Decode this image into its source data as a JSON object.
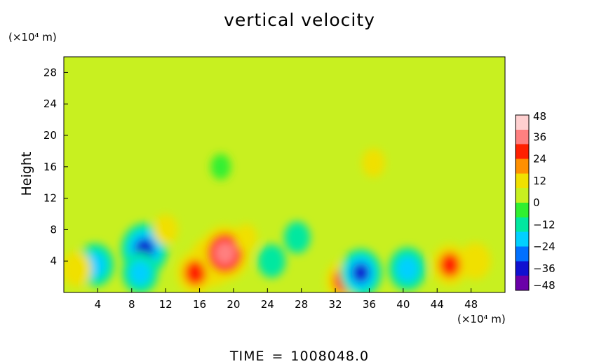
{
  "chart_data": {
    "type": "heatmap",
    "title": "vertical velocity",
    "ylabel": "Height",
    "y_units": "(×10⁴ m)",
    "x_units": "(×10⁴ m)",
    "xlim": [
      0,
      52
    ],
    "ylim": [
      0,
      30
    ],
    "x_ticks": [
      4,
      8,
      12,
      16,
      20,
      24,
      28,
      32,
      36,
      40,
      44,
      48
    ],
    "y_ticks": [
      4,
      8,
      12,
      16,
      20,
      24,
      28
    ],
    "colorbar": {
      "ticks": [
        48,
        36,
        24,
        12,
        0,
        -12,
        -24,
        -36,
        -48
      ],
      "range": [
        -48,
        48
      ],
      "colors": [
        "#6a00a8",
        "#1010d0",
        "#0070ff",
        "#00d0ff",
        "#00e8a0",
        "#30f030",
        "#c8f020",
        "#f0e000",
        "#ff9000",
        "#ff2000",
        "#ff8080",
        "#ffd0d0"
      ]
    },
    "features": [
      {
        "x": 3.7,
        "y": 3.5,
        "value": -30
      },
      {
        "x": 9.5,
        "y": 5.5,
        "value": -42
      },
      {
        "x": 9.0,
        "y": 2.5,
        "value": -28
      },
      {
        "x": 17.5,
        "y": 4.0,
        "value": 40
      },
      {
        "x": 15.5,
        "y": 2.5,
        "value": 30
      },
      {
        "x": 19.0,
        "y": 5.0,
        "value": 46
      },
      {
        "x": 24.5,
        "y": 4.0,
        "value": -18
      },
      {
        "x": 27.5,
        "y": 7.0,
        "value": -16
      },
      {
        "x": 33.0,
        "y": 1.5,
        "value": 28
      },
      {
        "x": 35.0,
        "y": 2.5,
        "value": -36
      },
      {
        "x": 40.5,
        "y": 3.0,
        "value": -30
      },
      {
        "x": 45.5,
        "y": 3.5,
        "value": 28
      },
      {
        "x": 48.5,
        "y": 4.0,
        "value": 22
      },
      {
        "x": 1.5,
        "y": 3.0,
        "value": 20
      },
      {
        "x": 12.0,
        "y": 8.0,
        "value": 14
      },
      {
        "x": 21.5,
        "y": 7.0,
        "value": 10
      },
      {
        "x": 18.5,
        "y": 16.0,
        "value": -8
      },
      {
        "x": 36.5,
        "y": 16.5,
        "value": 12
      }
    ],
    "time_label": "TIME",
    "time_equals": "=",
    "time_value": "1008048.0"
  }
}
